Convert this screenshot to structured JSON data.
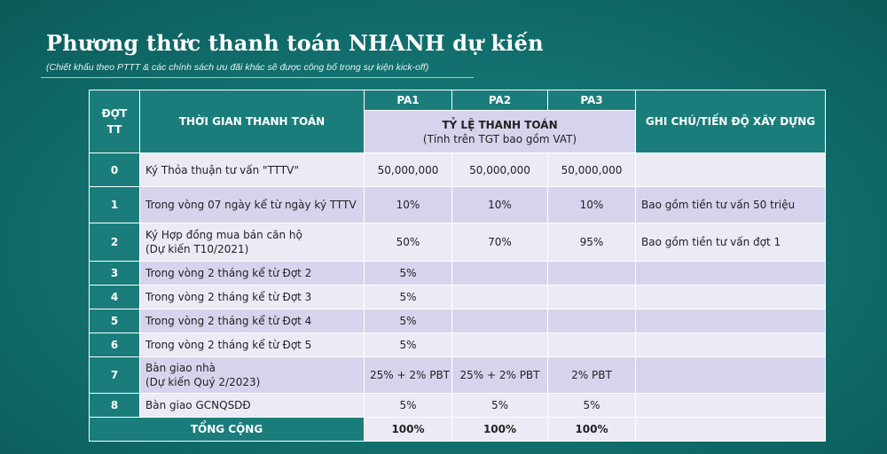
{
  "title": "Phương thức thanh toán NHANH dự kiến",
  "subtitle": "(Chiết khấu theo PTTT & các chính sách ưu đãi khác sẽ được công bố trong sự kiện kick-off)",
  "table": {
    "headers": {
      "index": "ĐỢT TT",
      "time": "THỜI GIAN THANH TOÁN",
      "pa1": "PA1",
      "pa2": "PA2",
      "pa3": "PA3",
      "rate": "TỶ LỆ THANH TOÁN",
      "rate_note": "(Tính trên TGT bao gồm VAT)",
      "note": "GHI CHÚ/TIẾN ĐỘ XÂY DỰNG"
    },
    "rows": [
      {
        "idx": "0",
        "time": "Ký Thỏa thuận tư vấn \"TTTV\"",
        "time2": "",
        "pa1": "50,000,000",
        "pa2": "50,000,000",
        "pa3": "50,000,000",
        "note": ""
      },
      {
        "idx": "1",
        "time": "Trong vòng 07 ngày kể từ ngày ký TTTV",
        "time2": "",
        "pa1": "10%",
        "pa2": "10%",
        "pa3": "10%",
        "note": "Bao gồm tiền tư vấn 50 triệu"
      },
      {
        "idx": "2",
        "time": "Ký Hợp đồng mua bán căn hộ",
        "time2": "(Dự kiến T10/2021)",
        "pa1": "50%",
        "pa2": "70%",
        "pa3": "95%",
        "note": "Bao gồm tiền tư vấn đợt 1"
      },
      {
        "idx": "3",
        "time": "Trong vòng 2 tháng kể từ Đợt 2",
        "time2": "",
        "pa1": "5%",
        "pa2": "",
        "pa3": "",
        "note": ""
      },
      {
        "idx": "4",
        "time": "Trong vòng 2 tháng kể từ Đợt 3",
        "time2": "",
        "pa1": "5%",
        "pa2": "",
        "pa3": "",
        "note": ""
      },
      {
        "idx": "5",
        "time": "Trong vòng 2 tháng kể từ Đợt 4",
        "time2": "",
        "pa1": "5%",
        "pa2": "",
        "pa3": "",
        "note": ""
      },
      {
        "idx": "6",
        "time": "Trong vòng 2 tháng kể từ Đợt 5",
        "time2": "",
        "pa1": "5%",
        "pa2": "",
        "pa3": "",
        "note": ""
      },
      {
        "idx": "7",
        "time": "Bàn giao nhà",
        "time2": "(Dự kiến Quý 2/2023)",
        "pa1": "25% + 2% PBT",
        "pa2": "25% + 2% PBT",
        "pa3": "2% PBT",
        "note": ""
      },
      {
        "idx": "8",
        "time": "Bàn giao GCNQSDĐ",
        "time2": "",
        "pa1": "5%",
        "pa2": "5%",
        "pa3": "5%",
        "note": ""
      }
    ],
    "total": {
      "label": "TỔNG CỘNG",
      "pa1": "100%",
      "pa2": "100%",
      "pa3": "100%",
      "note": ""
    }
  }
}
